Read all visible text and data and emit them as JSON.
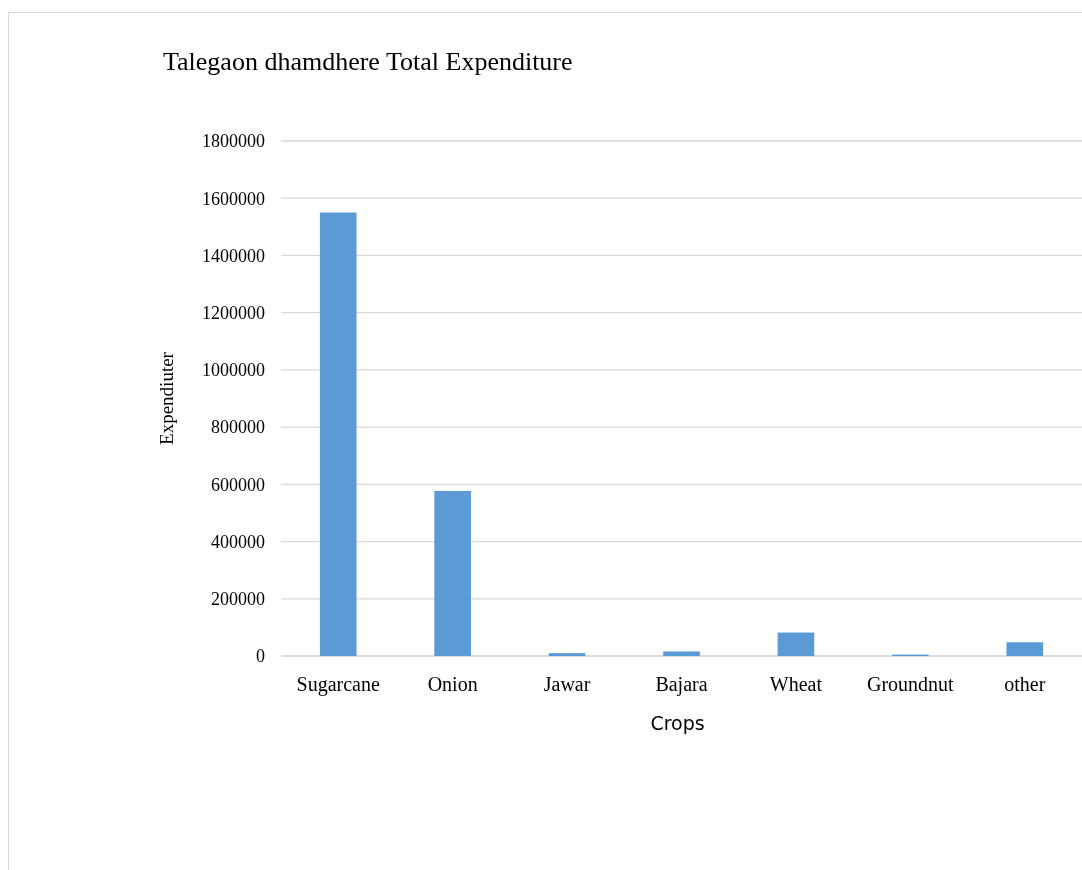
{
  "chart_data": {
    "type": "bar",
    "title": "Talegaon dhamdhere Total Expenditure",
    "xlabel": "Crops",
    "ylabel": "Expendiuter",
    "categories": [
      "Sugarcane",
      "Onion",
      "Jawar",
      "Bajara",
      "Wheat",
      "Groundnut",
      "other"
    ],
    "values": [
      1550000,
      577000,
      10000,
      16000,
      82000,
      5000,
      48000
    ],
    "color": "#5b9bd5",
    "ylim": [
      0,
      1800000
    ],
    "yticks": [
      0,
      200000,
      400000,
      600000,
      800000,
      1000000,
      1200000,
      1400000,
      1600000,
      1800000
    ],
    "grid": "y"
  }
}
